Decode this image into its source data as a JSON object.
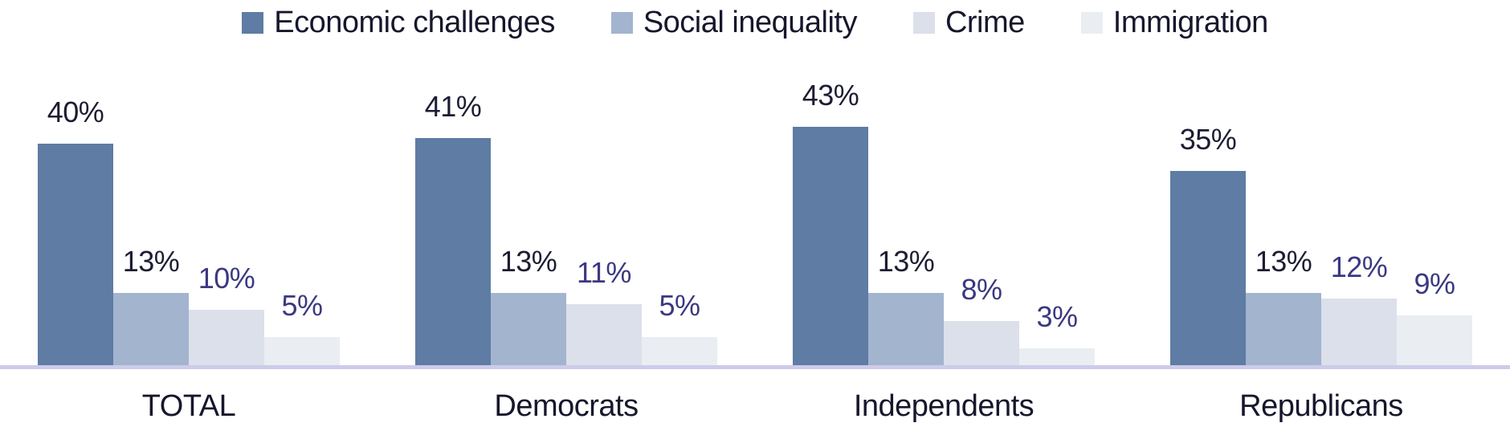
{
  "chart_data": {
    "type": "bar",
    "title": "",
    "xlabel": "",
    "ylabel": "",
    "value_suffix": "%",
    "ylim": [
      0,
      45
    ],
    "grid": false,
    "legend_position": "top",
    "axis_line_color": "#CDCBE9",
    "text_color": "#16162C",
    "categories": [
      "TOTAL",
      "Democrats",
      "Independents",
      "Republicans"
    ],
    "series": [
      {
        "name": "Economic challenges",
        "color": "#5E7CA4",
        "label_color": "#1C1C33",
        "values": [
          40,
          41,
          43,
          35
        ]
      },
      {
        "name": "Social inequality",
        "color": "#A3B4CF",
        "label_color": "#1C1C33",
        "values": [
          13,
          13,
          13,
          13
        ]
      },
      {
        "name": "Crime",
        "color": "#DBE0EA",
        "label_color": "#3B3881",
        "values": [
          10,
          11,
          8,
          12
        ]
      },
      {
        "name": "Immigration",
        "color": "#EAEDF2",
        "label_color": "#3B3881",
        "values": [
          5,
          5,
          3,
          9
        ]
      }
    ]
  }
}
